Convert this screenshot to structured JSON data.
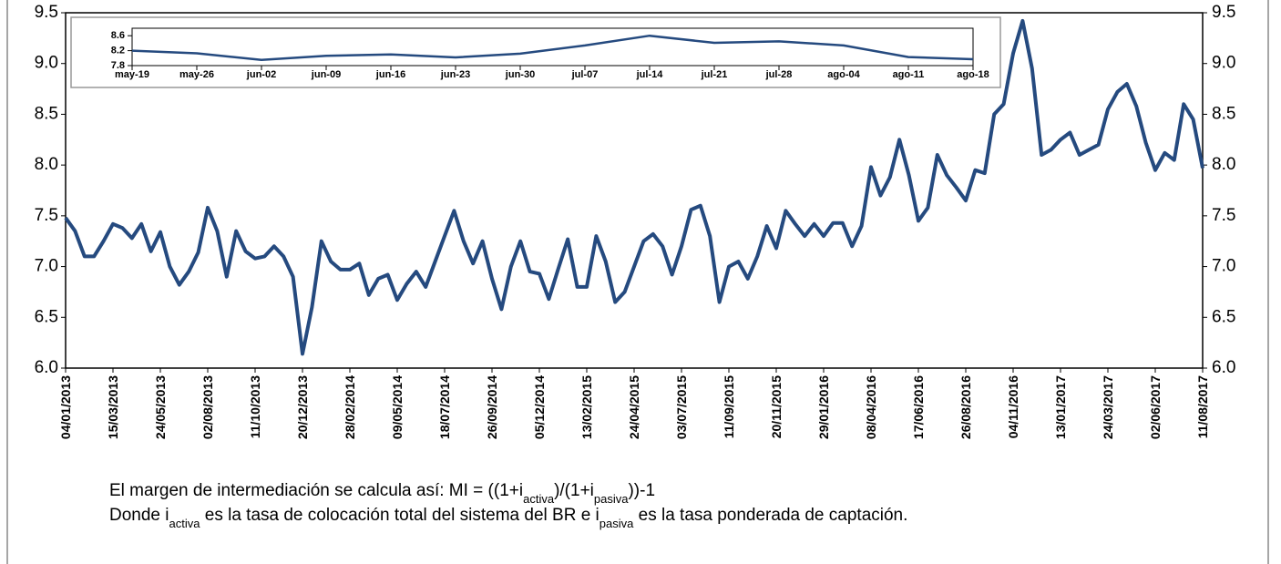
{
  "chart_data": [
    {
      "type": "line",
      "categories": [
        "04/01/2013",
        null,
        null,
        null,
        null,
        "15/03/2013",
        null,
        null,
        null,
        null,
        "24/05/2013",
        null,
        null,
        null,
        null,
        "02/08/2013",
        null,
        null,
        null,
        null,
        "11/10/2013",
        null,
        null,
        null,
        null,
        "20/12/2013",
        null,
        null,
        null,
        null,
        "28/02/2014",
        null,
        null,
        null,
        null,
        "09/05/2014",
        null,
        null,
        null,
        null,
        "18/07/2014",
        null,
        null,
        null,
        null,
        "26/09/2014",
        null,
        null,
        null,
        null,
        "05/12/2014",
        null,
        null,
        null,
        null,
        "13/02/2015",
        null,
        null,
        null,
        null,
        "24/04/2015",
        null,
        null,
        null,
        null,
        "03/07/2015",
        null,
        null,
        null,
        null,
        "11/09/2015",
        null,
        null,
        null,
        null,
        "20/11/2015",
        null,
        null,
        null,
        null,
        "29/01/2016",
        null,
        null,
        null,
        null,
        "08/04/2016",
        null,
        null,
        null,
        null,
        "17/06/2016",
        null,
        null,
        null,
        null,
        "26/08/2016",
        null,
        null,
        null,
        null,
        "04/11/2016",
        null,
        null,
        null,
        null,
        "13/01/2017",
        null,
        null,
        null,
        null,
        "24/03/2017",
        null,
        null,
        null,
        null,
        "02/06/2017",
        null,
        null,
        null,
        null,
        "11/08/2017"
      ],
      "values": [
        7.48,
        7.35,
        7.1,
        7.1,
        7.25,
        7.42,
        7.38,
        7.28,
        7.42,
        7.15,
        7.34,
        7.0,
        6.82,
        6.95,
        7.14,
        7.58,
        7.35,
        6.9,
        7.35,
        7.15,
        7.08,
        7.1,
        7.2,
        7.1,
        6.9,
        6.14,
        6.6,
        7.25,
        7.05,
        6.97,
        6.97,
        7.03,
        6.72,
        6.88,
        6.92,
        6.67,
        6.83,
        6.95,
        6.8,
        7.05,
        7.3,
        7.55,
        7.25,
        7.03,
        7.25,
        6.88,
        6.58,
        7.0,
        7.25,
        6.95,
        6.93,
        6.68,
        6.98,
        7.27,
        6.8,
        6.8,
        7.3,
        7.05,
        6.65,
        6.75,
        7.0,
        7.25,
        7.32,
        7.2,
        6.92,
        7.2,
        7.56,
        7.6,
        7.3,
        6.65,
        7.0,
        7.05,
        6.88,
        7.1,
        7.4,
        7.18,
        7.55,
        7.42,
        7.3,
        7.42,
        7.3,
        7.43,
        7.43,
        7.2,
        7.4,
        7.98,
        7.7,
        7.88,
        8.25,
        7.9,
        7.45,
        7.58,
        8.1,
        7.9,
        7.78,
        7.65,
        7.95,
        7.92,
        8.5,
        8.6,
        9.1,
        9.42,
        8.95,
        8.1,
        8.15,
        8.25,
        8.32,
        8.1,
        8.15,
        8.2,
        8.55,
        8.72,
        8.8,
        8.58,
        8.22,
        7.95,
        8.12,
        8.05,
        8.6,
        8.45,
        7.97
      ],
      "color": "#254a7f",
      "ylim": [
        6.0,
        9.5
      ],
      "yticks": [
        {
          "value": 6.0,
          "label": "6.0"
        },
        {
          "value": 6.5,
          "label": "6.5"
        },
        {
          "value": 7.0,
          "label": "7.0"
        },
        {
          "value": 7.5,
          "label": "7.5"
        },
        {
          "value": 8.0,
          "label": "8.0"
        },
        {
          "value": 8.5,
          "label": "8.5"
        },
        {
          "value": 9.0,
          "label": "9.0"
        },
        {
          "value": 9.5,
          "label": "9.5"
        }
      ]
    },
    {
      "type": "line",
      "categories": [
        "may-19",
        "may-26",
        "jun-02",
        "jun-09",
        "jun-16",
        "jun-23",
        "jun-30",
        "jul-07",
        "jul-14",
        "jul-21",
        "jul-28",
        "ago-04",
        "ago-11",
        "ago-18"
      ],
      "values": [
        8.2,
        8.13,
        7.95,
        8.06,
        8.1,
        8.02,
        8.12,
        8.34,
        8.6,
        8.41,
        8.45,
        8.34,
        8.03,
        7.97
      ],
      "color": "#254a7f",
      "ylim": [
        7.8,
        8.8
      ],
      "yticks": [
        7.8,
        8.2,
        8.6
      ]
    }
  ],
  "notes": [
    [
      "El margen de intermediación se calcula así: MI = ((1+i",
      "activa",
      ")/(1+i",
      "pasiva",
      "))-1"
    ],
    [
      "Donde i",
      "activa",
      " es la tasa de colocación total del sistema del BR e i",
      "pasiva",
      " es la tasa ponderada de captación."
    ]
  ]
}
